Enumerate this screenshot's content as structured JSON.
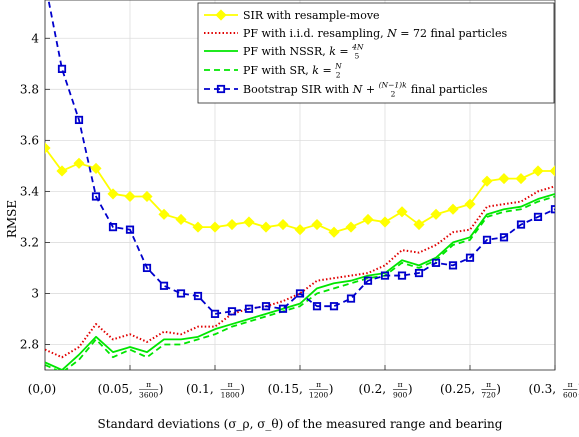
{
  "chart_data": {
    "type": "line",
    "xlabel": "Standard deviations (σ_ρ, σ_θ) of the measured range and bearing",
    "ylabel": "RMSE",
    "xlim": [
      0,
      0.3
    ],
    "ylim": [
      2.7,
      4.15
    ],
    "grid": true,
    "legend_placement": "top-right",
    "x_ticks": [
      {
        "value": 0.0,
        "lead": "(0,0)",
        "num": "",
        "den": "",
        "tail": ""
      },
      {
        "value": 0.05,
        "lead": "(0.05,",
        "num": "π",
        "den": "3600",
        "tail": ")"
      },
      {
        "value": 0.1,
        "lead": "(0.1,",
        "num": "π",
        "den": "1800",
        "tail": ")"
      },
      {
        "value": 0.15,
        "lead": "(0.15,",
        "num": "π",
        "den": "1200",
        "tail": ")"
      },
      {
        "value": 0.2,
        "lead": "(0.2,",
        "num": "π",
        "den": "900",
        "tail": ")"
      },
      {
        "value": 0.25,
        "lead": "(0.25,",
        "num": "π",
        "den": "720",
        "tail": ")"
      },
      {
        "value": 0.3,
        "lead": "(0.3,",
        "num": "π",
        "den": "600",
        "tail": ")"
      }
    ],
    "y_ticks": [
      {
        "value": 2.8,
        "label": "2.8"
      },
      {
        "value": 3.0,
        "label": "3"
      },
      {
        "value": 3.2,
        "label": "3.2"
      },
      {
        "value": 3.4,
        "label": "3.4"
      },
      {
        "value": 3.6,
        "label": "3.6"
      },
      {
        "value": 3.8,
        "label": "3.8"
      },
      {
        "value": 4.0,
        "label": "4"
      }
    ],
    "x": [
      0.0,
      0.01,
      0.02,
      0.03,
      0.04,
      0.05,
      0.06,
      0.07,
      0.08,
      0.09,
      0.1,
      0.11,
      0.12,
      0.13,
      0.14,
      0.15,
      0.16,
      0.17,
      0.18,
      0.19,
      0.2,
      0.21,
      0.22,
      0.23,
      0.24,
      0.25,
      0.26,
      0.27,
      0.28,
      0.29,
      0.3
    ],
    "series": [
      {
        "name": "SIR with resample-move",
        "color": "#ffff00",
        "dash": "solid",
        "marker": "diamond",
        "values": [
          3.57,
          3.48,
          3.51,
          3.49,
          3.39,
          3.38,
          3.38,
          3.31,
          3.29,
          3.26,
          3.26,
          3.27,
          3.28,
          3.26,
          3.27,
          3.25,
          3.27,
          3.24,
          3.26,
          3.29,
          3.28,
          3.32,
          3.27,
          3.31,
          3.33,
          3.35,
          3.44,
          3.45,
          3.45,
          3.48,
          3.48
        ]
      },
      {
        "name": "PF with i.i.d. resampling, N = 72 final particles",
        "legend_parts": [
          "PF with i.i.d. resampling, ",
          "N",
          " = 72 final particles"
        ],
        "color": "#e00000",
        "dash": "dotted",
        "marker": "none",
        "values": [
          2.78,
          2.75,
          2.79,
          2.88,
          2.82,
          2.84,
          2.81,
          2.85,
          2.84,
          2.87,
          2.87,
          2.92,
          2.94,
          2.95,
          2.97,
          3.0,
          3.05,
          3.06,
          3.07,
          3.08,
          3.11,
          3.17,
          3.16,
          3.19,
          3.24,
          3.25,
          3.34,
          3.35,
          3.36,
          3.4,
          3.42
        ]
      },
      {
        "name": "PF with NSSR, k = 4N/5",
        "legend_parts": [
          "PF with NSSR, ",
          "k",
          " = ",
          "4N",
          "5"
        ],
        "color": "#00e600",
        "dash": "solid",
        "marker": "none",
        "values": [
          2.73,
          2.7,
          2.76,
          2.83,
          2.77,
          2.79,
          2.77,
          2.82,
          2.82,
          2.83,
          2.86,
          2.88,
          2.9,
          2.92,
          2.94,
          2.96,
          3.02,
          3.04,
          3.05,
          3.07,
          3.08,
          3.13,
          3.11,
          3.14,
          3.2,
          3.22,
          3.31,
          3.33,
          3.34,
          3.37,
          3.39
        ]
      },
      {
        "name": "PF with SR, k = N/2",
        "legend_parts": [
          "PF with SR, ",
          "k",
          " = ",
          "N",
          "2"
        ],
        "color": "#00e600",
        "dash": "dashed",
        "marker": "none",
        "values": [
          2.72,
          2.69,
          2.74,
          2.82,
          2.75,
          2.78,
          2.75,
          2.8,
          2.8,
          2.82,
          2.84,
          2.87,
          2.89,
          2.91,
          2.93,
          2.95,
          3.0,
          3.02,
          3.04,
          3.06,
          3.07,
          3.12,
          3.1,
          3.13,
          3.19,
          3.21,
          3.3,
          3.32,
          3.33,
          3.36,
          3.38
        ]
      },
      {
        "name": "Bootstrap SIR with N + (N-1)k/2 final particles",
        "legend_parts": [
          "Bootstrap SIR with ",
          "N",
          " + ",
          "(N−1)k",
          "2",
          " final particles"
        ],
        "color": "#0000cc",
        "dash": "dashed",
        "marker": "square",
        "values": [
          4.22,
          3.88,
          3.68,
          3.38,
          3.26,
          3.25,
          3.1,
          3.03,
          3.0,
          2.99,
          2.92,
          2.93,
          2.94,
          2.95,
          2.94,
          3.0,
          2.95,
          2.95,
          2.98,
          3.05,
          3.07,
          3.07,
          3.08,
          3.12,
          3.11,
          3.14,
          3.21,
          3.22,
          3.27,
          3.3,
          3.33
        ]
      }
    ]
  }
}
